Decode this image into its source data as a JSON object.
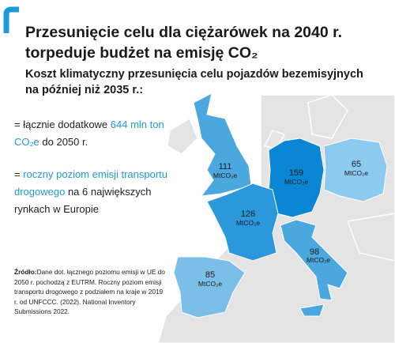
{
  "header": {
    "title_line1": "Przesunięcie celu dla ciężarówek na 2040 r.",
    "title_line2": "torpeduje budżet na emisję CO₂",
    "subtitle_line1": "Koszt klimatyczny przesunięcia celu pojazdów bezemisyjnych",
    "subtitle_line2": "na później niż 2035 r.:"
  },
  "bullets": [
    {
      "line1_prefix": "= łącznie dodatkowe ",
      "line1_highlight": "644 mln ton",
      "line2_highlight": "CO₂e",
      "line2_suffix": " do 2050 r."
    },
    {
      "line1_prefix": "= ",
      "line1_highlight": "roczny poziom emisji transportu",
      "line2_highlight": "drogowego",
      "line2_suffix": " na 6 największych",
      "line3": "rynkach w Europie"
    }
  ],
  "map": {
    "unit": "MtCO₂e",
    "regions": [
      {
        "name": "Wielka Brytania",
        "value": "111"
      },
      {
        "name": "Niemcy",
        "value": "159"
      },
      {
        "name": "Polska",
        "value": "65"
      },
      {
        "name": "Francja",
        "value": "126"
      },
      {
        "name": "Włochy",
        "value": "98"
      },
      {
        "name": "Hiszpania",
        "value": "85"
      }
    ]
  },
  "source": {
    "label": "Źródło:",
    "text": "Dane dot. łącznego poziomu emisji w UE do 2050 r. pochodzą z EUTRM. Roczny poziom emisji transportu drogowego z podziałem na kraje w 2019 r. od UNFCCC. (2022). National Inventory Submissions 2022."
  }
}
